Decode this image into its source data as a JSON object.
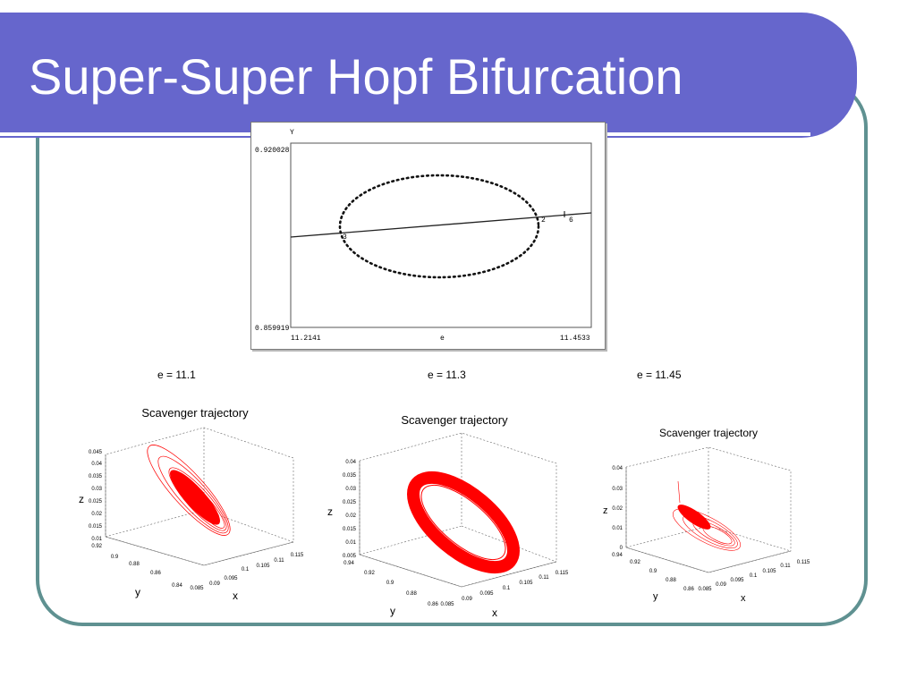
{
  "slide": {
    "title": "Super-Super Hopf Bifurcation"
  },
  "bifurcation": {
    "ylabel": "Y",
    "ymax": "0.920028",
    "ymin": "0.859919",
    "xmin": "11.2141",
    "xlabel": "e",
    "xmax": "11.4533",
    "labels": [
      "3",
      "2",
      "6"
    ]
  },
  "captions": [
    "e = 11.1",
    "e = 11.3",
    "e = 11.45"
  ],
  "trajectories": [
    {
      "title": "Scavenger trajectory",
      "zlabel": "z",
      "xlabel": "x",
      "ylabel": "y",
      "zticks": [
        "0.045",
        "0.04",
        "0.035",
        "0.03",
        "0.025",
        "0.02",
        "0.015",
        "0.01"
      ],
      "yticks": [
        "0.92",
        "0.9",
        "0.88",
        "0.86",
        "0.84"
      ],
      "xticks": [
        "0.085",
        "0.09",
        "0.095",
        "0.1",
        "0.105",
        "0.11",
        "0.115"
      ]
    },
    {
      "title": "Scavenger trajectory",
      "zlabel": "z",
      "xlabel": "x",
      "ylabel": "y",
      "zticks": [
        "0.04",
        "0.035",
        "0.03",
        "0.025",
        "0.02",
        "0.015",
        "0.01",
        "0.005"
      ],
      "yticks": [
        "0.94",
        "0.92",
        "0.9",
        "0.88",
        "0.86"
      ],
      "xticks": [
        "0.085",
        "0.09",
        "0.095",
        "0.1",
        "0.105",
        "0.11",
        "0.115"
      ]
    },
    {
      "title": "Scavenger trajectory",
      "zlabel": "z",
      "xlabel": "x",
      "ylabel": "y",
      "zticks": [
        "0.04",
        "0.03",
        "0.02",
        "0.01",
        "0"
      ],
      "yticks": [
        "0.94",
        "0.92",
        "0.9",
        "0.88",
        "0.86"
      ],
      "xticks": [
        "0.085",
        "0.09",
        "0.095",
        "0.1",
        "0.105",
        "0.11",
        "0.115"
      ]
    }
  ],
  "colors": {
    "title_bar": "#6666cc",
    "frame": "#5f9191",
    "trajectory": "#ff0000"
  }
}
